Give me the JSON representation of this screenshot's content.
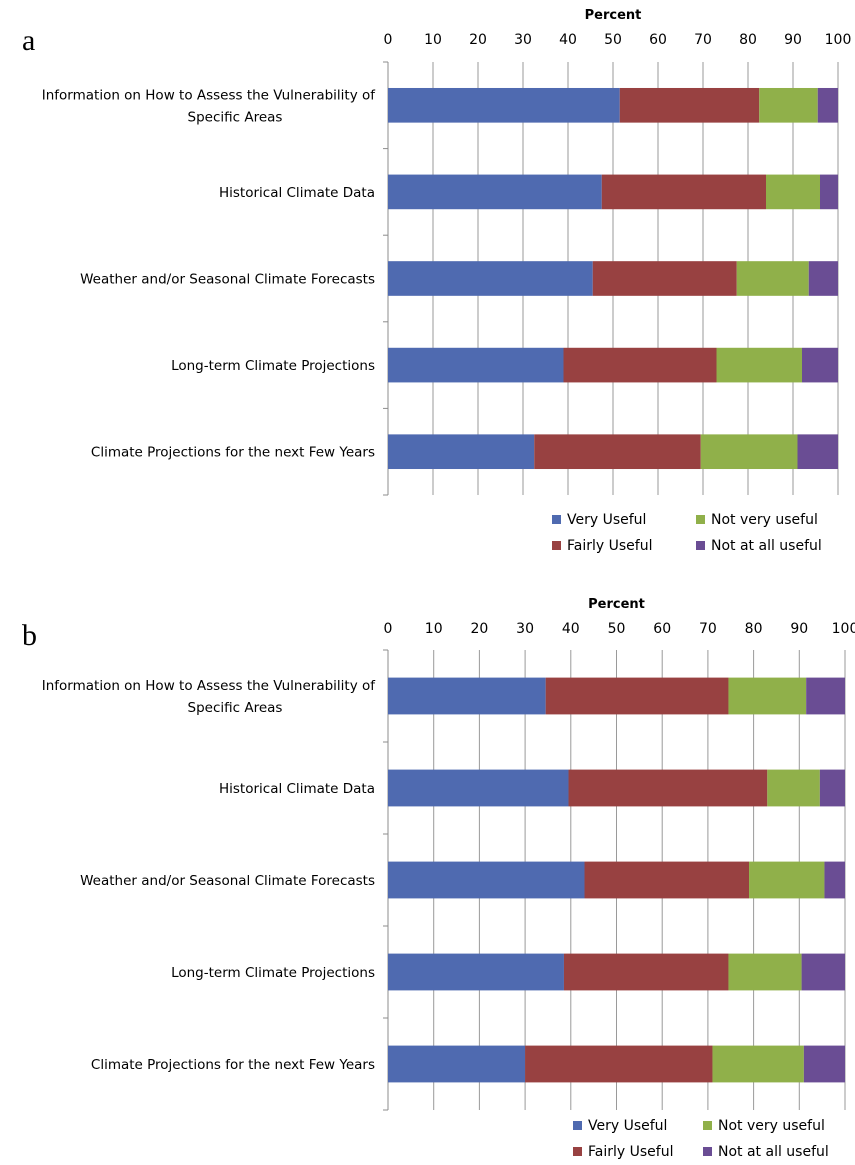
{
  "chart_data": [
    {
      "type": "bar",
      "orientation": "horizontal",
      "stacked": true,
      "panel_label": "a",
      "xlabel": "Percent",
      "xlim": [
        0,
        100
      ],
      "xticks": [
        "0",
        "10",
        "20",
        "30",
        "40",
        "50",
        "60",
        "70",
        "80",
        "90",
        "100"
      ],
      "grid": true,
      "legend_position": "bottom-right",
      "categories": [
        [
          "Information on How to Assess the Vulnerability of",
          "Specific Areas"
        ],
        [
          "Historical Climate Data"
        ],
        [
          "Weather and/or Seasonal Climate Forecasts"
        ],
        [
          "Long-term Climate Projections"
        ],
        [
          "Climate Projections for the next Few Years"
        ]
      ],
      "series": [
        {
          "name": "Very Useful",
          "color": "#4f6ab0",
          "values": [
            51.5,
            47.5,
            45.5,
            39,
            32.5
          ]
        },
        {
          "name": "Fairly Useful",
          "color": "#984141",
          "values": [
            31,
            36.5,
            32,
            34,
            37
          ]
        },
        {
          "name": "Not very useful",
          "color": "#90b04a",
          "values": [
            13,
            12,
            16,
            19,
            21.5
          ]
        },
        {
          "name": "Not at all useful",
          "color": "#6a4d94",
          "values": [
            4.5,
            4,
            6.5,
            8,
            9
          ]
        }
      ],
      "legend_order": [
        "Very Useful",
        "Not very useful",
        "Fairly Useful",
        "Not at all useful"
      ]
    },
    {
      "type": "bar",
      "orientation": "horizontal",
      "stacked": true,
      "panel_label": "b",
      "xlabel": "Percent",
      "xlim": [
        0,
        100
      ],
      "xticks": [
        "0",
        "10",
        "20",
        "30",
        "40",
        "50",
        "60",
        "70",
        "80",
        "90",
        "100"
      ],
      "grid": true,
      "legend_position": "bottom-right",
      "categories": [
        [
          "Information on How to Assess the Vulnerability of",
          "Specific Areas"
        ],
        [
          "Historical Climate Data"
        ],
        [
          "Weather and/or Seasonal Climate Forecasts"
        ],
        [
          "Long-term Climate Projections"
        ],
        [
          "Climate Projections for the next Few Years"
        ]
      ],
      "series": [
        {
          "name": "Very Useful",
          "color": "#4f6ab0",
          "values": [
            34.5,
            39.5,
            43,
            38.5,
            30
          ]
        },
        {
          "name": "Fairly Useful",
          "color": "#984141",
          "values": [
            40,
            43.5,
            36,
            36,
            41
          ]
        },
        {
          "name": "Not very useful",
          "color": "#90b04a",
          "values": [
            17,
            11.5,
            16.5,
            16,
            20
          ]
        },
        {
          "name": "Not at all useful",
          "color": "#6a4d94",
          "values": [
            8.5,
            5.5,
            4.5,
            9.5,
            9
          ]
        }
      ],
      "legend_order": [
        "Very Useful",
        "Not very useful",
        "Fairly Useful",
        "Not at all useful"
      ]
    }
  ]
}
